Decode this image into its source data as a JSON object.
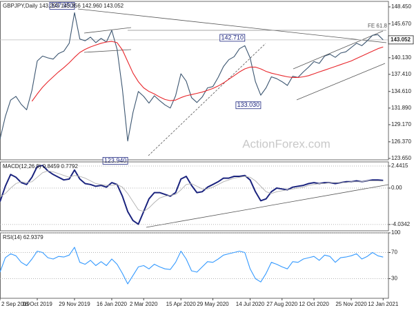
{
  "chart_data": [
    {
      "type": "line",
      "title": "GBPJPY,Daily  143.293 143.356 142.960 143.052",
      "watermark": "ActionForex.com",
      "fe_label": "FE 61.8",
      "xlim": [
        0,
        73
      ],
      "ylim": [
        123.42,
        149.35
      ],
      "grid": false,
      "yticks": [
        {
          "value": 148.45,
          "label": "148.450"
        },
        {
          "value": 145.67,
          "label": "145.670"
        },
        {
          "value": 140.13,
          "label": "140.130"
        },
        {
          "value": 137.41,
          "label": "137.410"
        },
        {
          "value": 134.61,
          "label": "134.610"
        },
        {
          "value": 131.89,
          "label": "131.890"
        },
        {
          "value": 129.17,
          "label": "129.170"
        },
        {
          "value": 126.37,
          "label": "126.370"
        },
        {
          "value": 123.65,
          "label": "123.650"
        }
      ],
      "last_price": 143.052,
      "series": [
        {
          "color": "#3b5570",
          "values": [
            126.8,
            130.5,
            133.2,
            133.8,
            132.5,
            131.6,
            134.8,
            139.6,
            140.4,
            140.1,
            139.9,
            140.8,
            141.2,
            142.5,
            147.5,
            143.2,
            142.9,
            143.5,
            142.6,
            143.3,
            142.7,
            144.6,
            141.5,
            135.0,
            126.5,
            131.2,
            134.6,
            133.8,
            132.7,
            133.9,
            133.1,
            132.4,
            131.9,
            133.9,
            137.5,
            136.3,
            133.6,
            132.8,
            133.7,
            135.2,
            135.4,
            136.9,
            138.7,
            139.8,
            140.3,
            141.6,
            142.1,
            140.1,
            136.2,
            134.0,
            135.2,
            137.0,
            136.7,
            136.2,
            135.6,
            137.1,
            136.9,
            137.8,
            138.6,
            139.5,
            139.2,
            140.4,
            140.7,
            140.2,
            140.9,
            141.1,
            141.8,
            142.5,
            142.1,
            142.9,
            143.8,
            143.9,
            143.052
          ]
        },
        {
          "color": "#e8262b",
          "values": [
            null,
            null,
            null,
            null,
            null,
            null,
            133.0,
            134.2,
            135.3,
            136.2,
            137.0,
            137.8,
            138.5,
            139.3,
            140.2,
            141.0,
            141.5,
            141.9,
            142.2,
            142.5,
            142.7,
            142.8,
            142.6,
            141.4,
            139.5,
            137.6,
            136.2,
            135.2,
            134.6,
            134.2,
            133.7,
            133.3,
            133.1,
            133.2,
            133.6,
            133.9,
            134.1,
            134.3,
            134.5,
            134.8,
            135.1,
            135.5,
            136.0,
            136.6,
            137.2,
            137.8,
            138.3,
            138.6,
            138.6,
            138.3,
            137.9,
            137.6,
            137.4,
            137.2,
            137.0,
            136.9,
            136.9,
            137.0,
            137.2,
            137.5,
            137.8,
            138.1,
            138.4,
            138.7,
            139.0,
            139.3,
            139.6,
            140.0,
            140.4,
            140.8,
            141.2,
            141.6,
            141.9
          ]
        }
      ],
      "annotations": [
        {
          "x": 14,
          "value": 147.95,
          "label": "147.950"
        },
        {
          "x": 24,
          "value": 123.94,
          "label": "123.940"
        },
        {
          "x": 46,
          "value": 142.71,
          "label": "142.710"
        },
        {
          "x": 49,
          "value": 133.03,
          "label": "133.030"
        }
      ]
    },
    {
      "type": "line",
      "title": "MACD(12,26,9) 0.8459 0.7792",
      "xlim": [
        0,
        73
      ],
      "ylim": [
        -4.73,
        2.9
      ],
      "grid": true,
      "yticks": [
        2.4415,
        {
          "value": 0,
          "label": "0.00"
        },
        -4.0342
      ],
      "series": [
        {
          "color": "#1a237e",
          "values": [
            -1.5,
            0.2,
            1.5,
            1.2,
            0.6,
            0.4,
            1.2,
            2.4,
            2.5,
            1.9,
            1.5,
            1.2,
            0.9,
            1.0,
            2.0,
            1.0,
            0.5,
            0.4,
            0.2,
            0.3,
            0.1,
            0.6,
            0.4,
            -0.9,
            -2.6,
            -3.6,
            -4.0,
            -2.6,
            -1.2,
            -0.5,
            -0.5,
            -0.7,
            -0.9,
            -0.5,
            1.0,
            1.3,
            0.3,
            -0.5,
            -0.4,
            0.1,
            0.4,
            0.7,
            1.1,
            1.1,
            1.3,
            1.3,
            1.4,
            0.9,
            -0.4,
            -1.4,
            -1.2,
            -0.4,
            0.0,
            -0.1,
            -0.2,
            0.1,
            0.2,
            0.3,
            0.5,
            0.6,
            0.5,
            0.6,
            0.6,
            0.5,
            0.6,
            0.7,
            0.7,
            0.8,
            0.7,
            0.8,
            0.9,
            0.9,
            0.8459
          ]
        },
        {
          "color": "#b0b0b0",
          "values": [
            -1.0,
            -0.6,
            0.0,
            0.5,
            0.7,
            0.6,
            0.7,
            1.2,
            1.7,
            1.9,
            1.8,
            1.6,
            1.4,
            1.2,
            1.4,
            1.3,
            1.1,
            0.8,
            0.5,
            0.4,
            0.3,
            0.3,
            0.4,
            0.1,
            -0.6,
            -1.5,
            -2.4,
            -2.6,
            -2.2,
            -1.6,
            -1.1,
            -0.9,
            -0.8,
            -0.7,
            -0.2,
            0.4,
            0.5,
            0.2,
            -0.1,
            -0.1,
            0.1,
            0.4,
            0.7,
            0.9,
            1.1,
            1.2,
            1.3,
            1.2,
            0.8,
            0.2,
            -0.4,
            -0.6,
            -0.4,
            -0.3,
            -0.2,
            -0.1,
            0.0,
            0.1,
            0.3,
            0.4,
            0.5,
            0.5,
            0.6,
            0.6,
            0.6,
            0.6,
            0.7,
            0.7,
            0.7,
            0.8,
            0.8,
            0.8,
            0.7792
          ]
        }
      ]
    },
    {
      "type": "line",
      "title": "RSI(14) 62.9379",
      "xlim": [
        0,
        73
      ],
      "ylim": [
        0,
        100
      ],
      "grid": true,
      "yticks": [
        100,
        70,
        30
      ],
      "series": [
        {
          "color": "#3399ff",
          "values": [
            40,
            62,
            68,
            65,
            55,
            50,
            60,
            72,
            70,
            62,
            60,
            64,
            63,
            66,
            78,
            55,
            52,
            58,
            50,
            56,
            50,
            60,
            52,
            38,
            22,
            35,
            48,
            50,
            45,
            52,
            48,
            45,
            44,
            55,
            72,
            60,
            42,
            40,
            48,
            56,
            55,
            60,
            66,
            68,
            70,
            72,
            70,
            45,
            30,
            25,
            38,
            55,
            52,
            48,
            45,
            56,
            55,
            60,
            62,
            64,
            58,
            66,
            64,
            55,
            62,
            63,
            65,
            68,
            60,
            64,
            70,
            65,
            62.9379
          ]
        }
      ],
      "xticks": [
        {
          "value": 0,
          "label": "2 Sep 2019"
        },
        {
          "value": 7,
          "label": "16 Oct 2019"
        },
        {
          "value": 14,
          "label": "29 Nov 2019"
        },
        {
          "value": 21,
          "label": "16 Jan 2020"
        },
        {
          "value": 27,
          "label": "2 Mar 2020"
        },
        {
          "value": 34,
          "label": "15 Apr 2020"
        },
        {
          "value": 40,
          "label": "29 May 2020"
        },
        {
          "value": 47,
          "label": "14 Jul 2020"
        },
        {
          "value": 53,
          "label": "27 Aug 2020"
        },
        {
          "value": 59,
          "label": "12 Oct 2020"
        },
        {
          "value": 66,
          "label": "25 Nov 2020"
        },
        {
          "value": 72,
          "label": "12 Jan 2021"
        }
      ]
    }
  ]
}
